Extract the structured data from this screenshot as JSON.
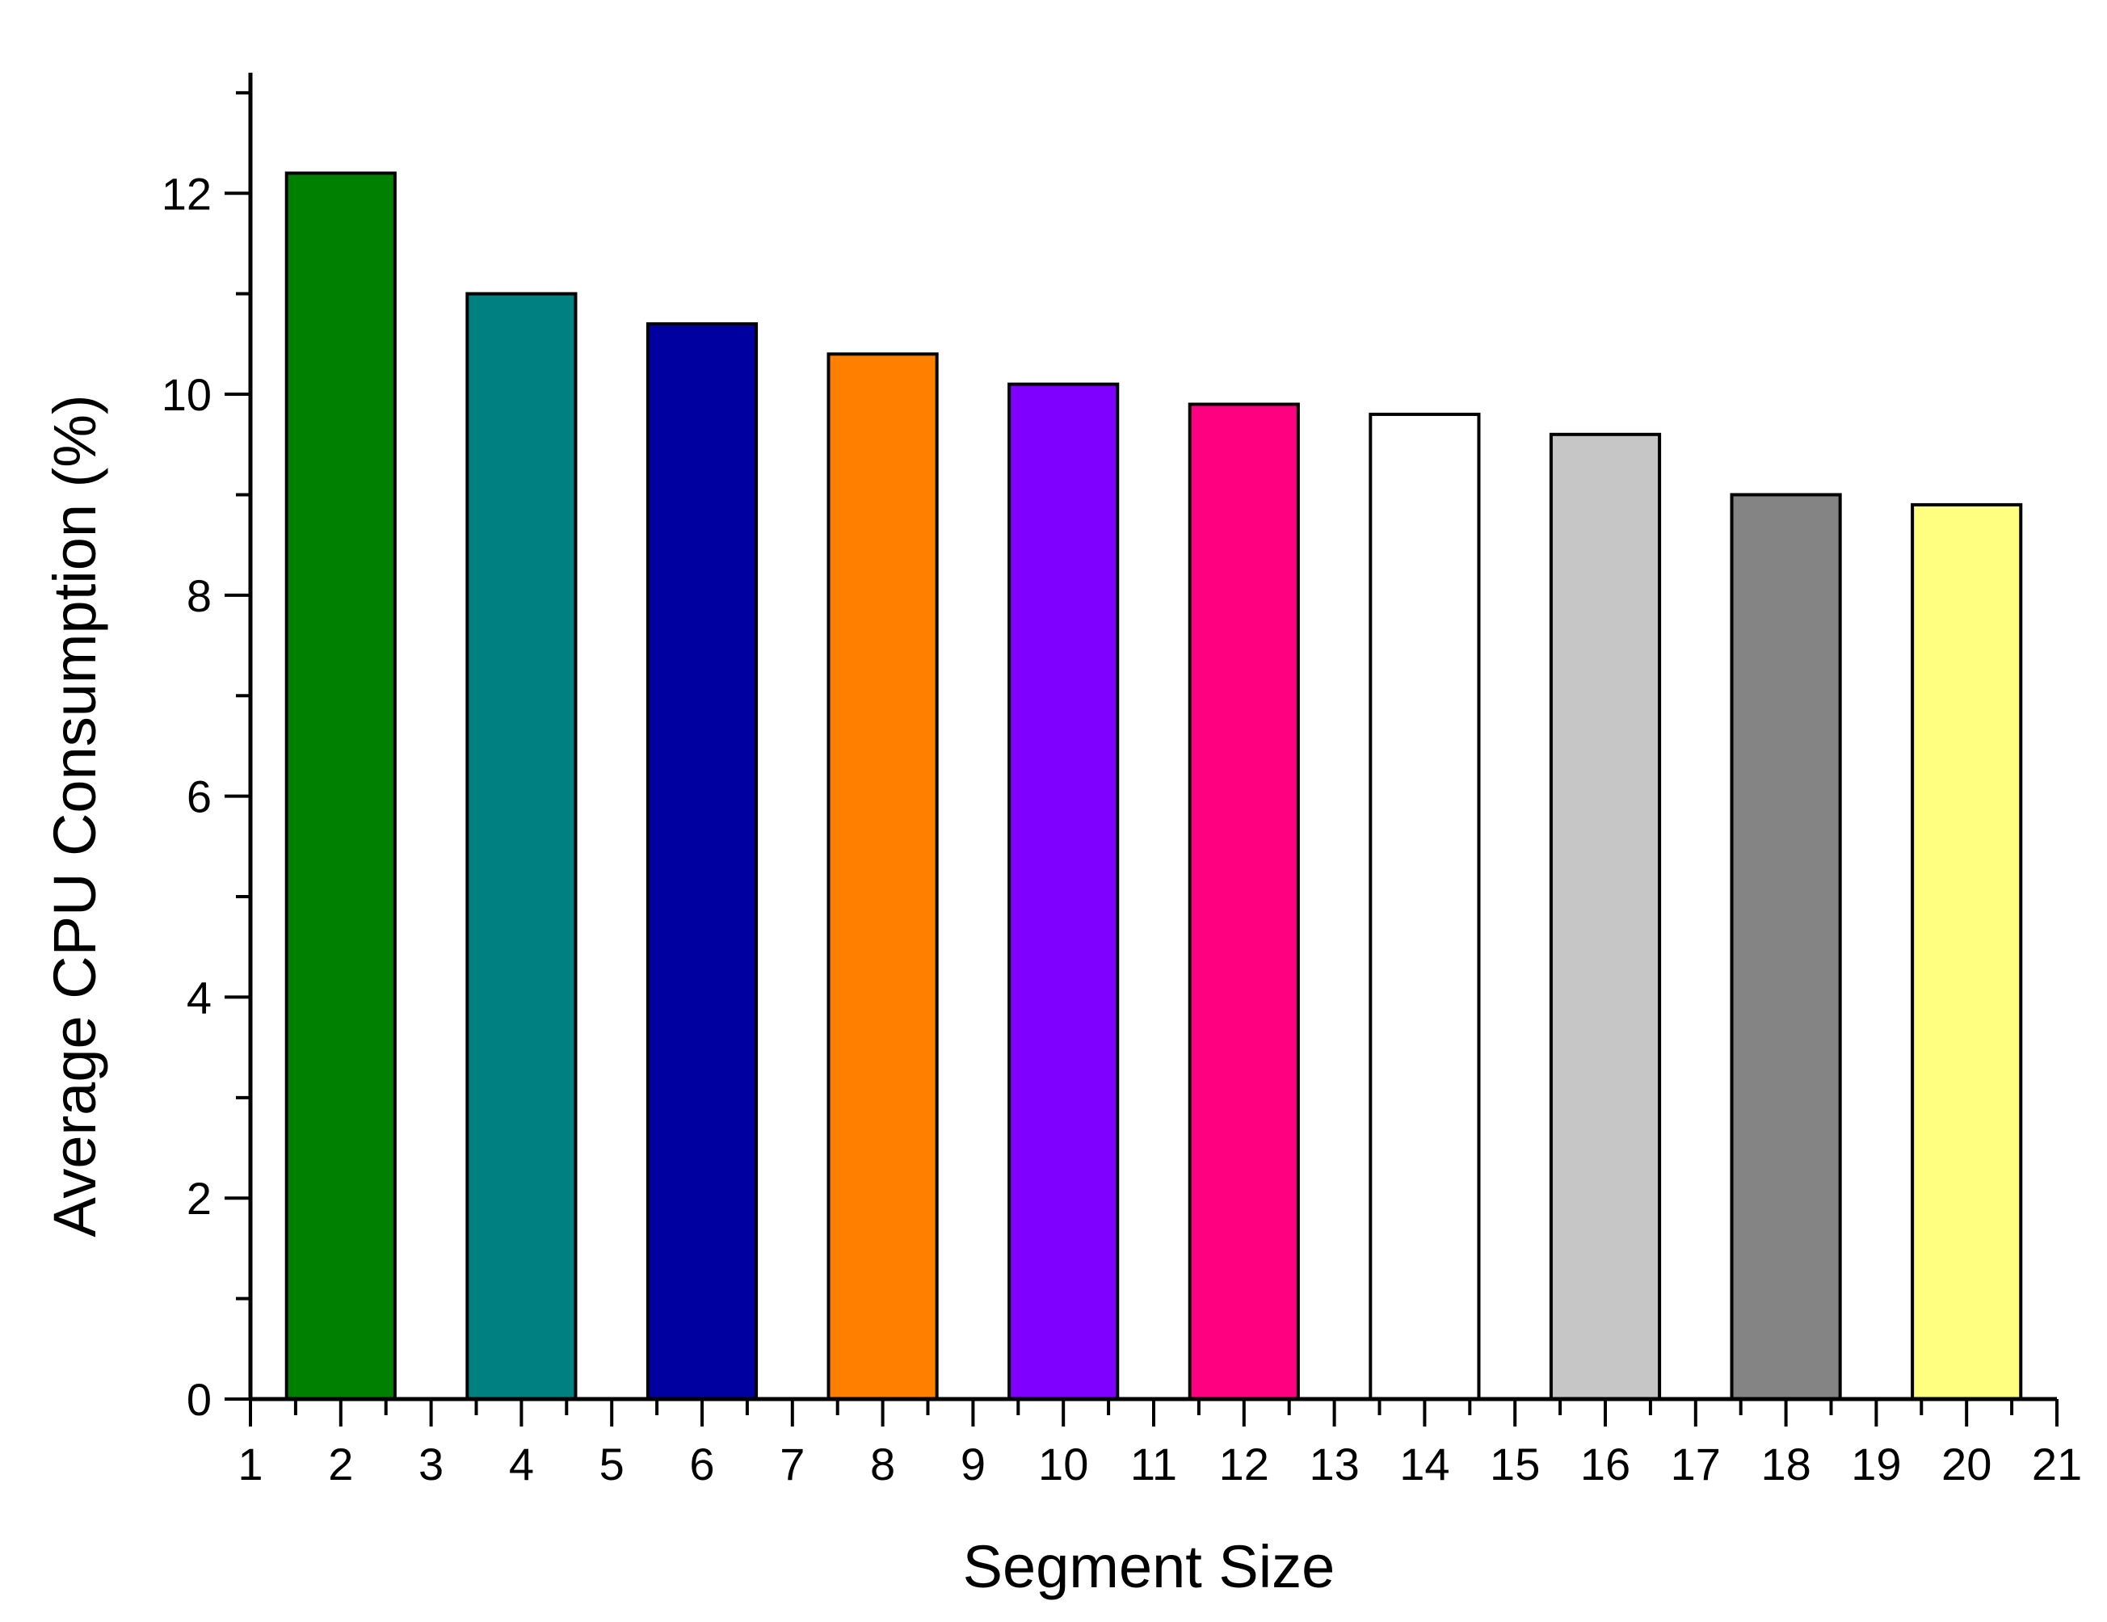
{
  "chart_data": {
    "type": "bar",
    "title": "",
    "xlabel": "Segment Size",
    "ylabel": "Average CPU Consumption (%)",
    "x": [
      2,
      4,
      6,
      8,
      10,
      12,
      14,
      16,
      18,
      20
    ],
    "values": [
      12.2,
      11.0,
      10.7,
      10.4,
      10.1,
      9.9,
      9.8,
      9.6,
      9.0,
      8.9
    ],
    "colors": [
      "#008000",
      "#008080",
      "#0000A0",
      "#FF8000",
      "#8000FF",
      "#FF0080",
      "#FFFFFF",
      "#C6C6C6",
      "#848484",
      "#FFFF80"
    ],
    "bar_width": 1.2,
    "xlim": [
      1,
      21
    ],
    "ylim": [
      0,
      13.2
    ],
    "xticks": [
      "1",
      "2",
      "3",
      "4",
      "5",
      "6",
      "7",
      "8",
      "9",
      "10",
      "11",
      "12",
      "13",
      "14",
      "15",
      "16",
      "17",
      "18",
      "19",
      "20",
      "21"
    ],
    "yticks": [
      "0",
      "2",
      "4",
      "6",
      "8",
      "10",
      "12"
    ],
    "grid": false,
    "legend": "none"
  }
}
